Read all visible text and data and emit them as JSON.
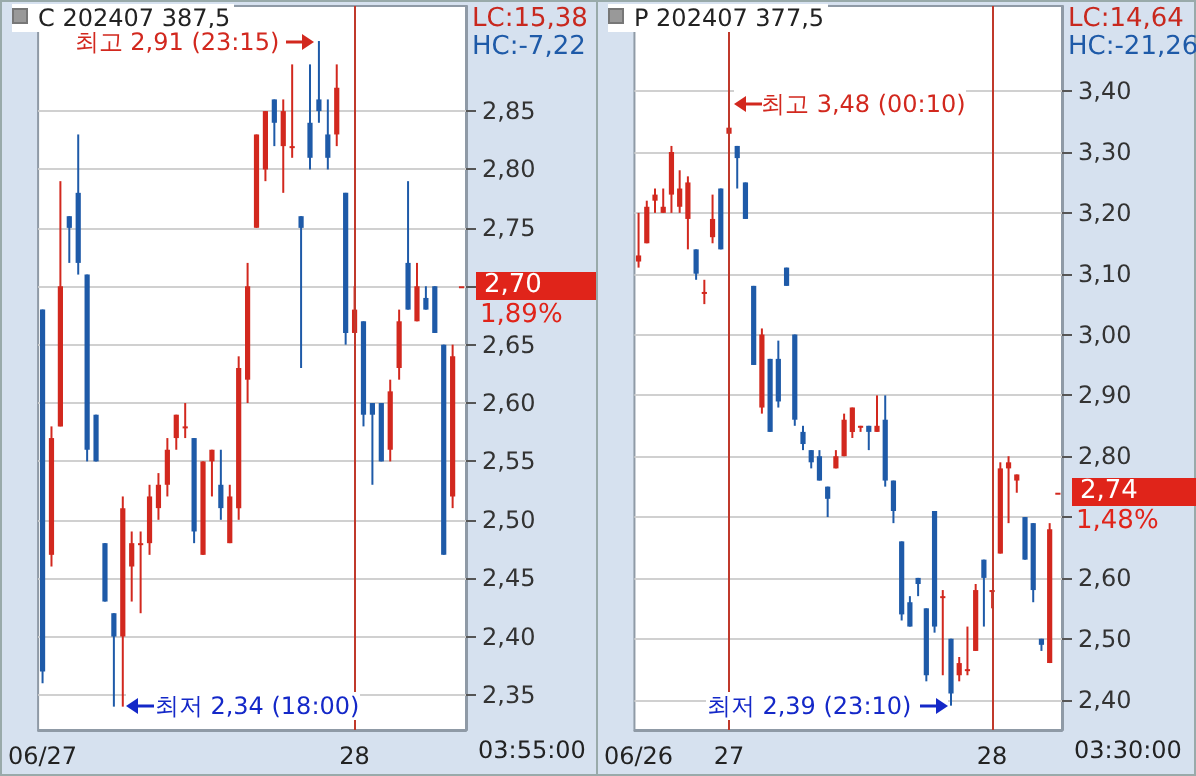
{
  "chart_data": [
    {
      "type": "candlestick",
      "title": "C 202407 387,5",
      "categories": [
        "06/27",
        null,
        null,
        null,
        null,
        null,
        null,
        null,
        null,
        null,
        null,
        null,
        null,
        null,
        null,
        null,
        null,
        null,
        null,
        null,
        null,
        null,
        null,
        null,
        null,
        null,
        null,
        null,
        null,
        null,
        null,
        null,
        null,
        null,
        null,
        "28",
        null,
        null,
        null,
        null,
        null,
        null,
        null,
        null,
        null,
        null,
        null,
        null
      ],
      "ohlc": [
        [
          2.68,
          2.68,
          2.36,
          2.37
        ],
        [
          2.47,
          2.58,
          2.46,
          2.57
        ],
        [
          2.58,
          2.79,
          2.58,
          2.7
        ],
        [
          2.76,
          2.76,
          2.72,
          2.75
        ],
        [
          2.78,
          2.83,
          2.71,
          2.72
        ],
        [
          2.71,
          2.71,
          2.55,
          2.56
        ],
        [
          2.59,
          2.59,
          2.55,
          2.55
        ],
        [
          2.48,
          2.48,
          2.43,
          2.43
        ],
        [
          2.42,
          2.42,
          2.34,
          2.4
        ],
        [
          2.4,
          2.52,
          2.34,
          2.51
        ],
        [
          2.46,
          2.49,
          2.43,
          2.48
        ],
        [
          2.48,
          2.49,
          2.42,
          2.48
        ],
        [
          2.48,
          2.53,
          2.47,
          2.52
        ],
        [
          2.51,
          2.54,
          2.5,
          2.53
        ],
        [
          2.53,
          2.57,
          2.52,
          2.56
        ],
        [
          2.57,
          2.59,
          2.56,
          2.59
        ],
        [
          2.58,
          2.6,
          2.57,
          2.58
        ],
        [
          2.57,
          2.57,
          2.48,
          2.49
        ],
        [
          2.47,
          2.55,
          2.47,
          2.55
        ],
        [
          2.55,
          2.56,
          2.52,
          2.56
        ],
        [
          2.53,
          2.56,
          2.5,
          2.51
        ],
        [
          2.48,
          2.53,
          2.48,
          2.52
        ],
        [
          2.51,
          2.64,
          2.5,
          2.63
        ],
        [
          2.62,
          2.72,
          2.6,
          2.7
        ],
        [
          2.75,
          2.83,
          2.75,
          2.83
        ],
        [
          2.8,
          2.85,
          2.79,
          2.85
        ],
        [
          2.86,
          2.86,
          2.82,
          2.84
        ],
        [
          2.82,
          2.86,
          2.78,
          2.85
        ],
        [
          2.82,
          2.89,
          2.81,
          2.82
        ],
        [
          2.76,
          2.76,
          2.63,
          2.75
        ],
        [
          2.84,
          2.89,
          2.8,
          2.81
        ],
        [
          2.86,
          2.91,
          2.84,
          2.85
        ],
        [
          2.83,
          2.86,
          2.8,
          2.81
        ],
        [
          2.83,
          2.89,
          2.82,
          2.87
        ],
        [
          2.78,
          2.78,
          2.65,
          2.66
        ],
        [
          2.66,
          2.7,
          2.66,
          2.68
        ],
        [
          2.67,
          2.67,
          2.58,
          2.59
        ],
        [
          2.6,
          2.6,
          2.53,
          2.59
        ],
        [
          2.6,
          2.6,
          2.55,
          2.55
        ],
        [
          2.56,
          2.62,
          2.55,
          2.61
        ],
        [
          2.63,
          2.68,
          2.62,
          2.67
        ],
        [
          2.72,
          2.79,
          2.68,
          2.68
        ],
        [
          2.67,
          2.72,
          2.67,
          2.7
        ],
        [
          2.69,
          2.7,
          2.68,
          2.68
        ],
        [
          2.7,
          2.7,
          2.66,
          2.66
        ],
        [
          2.65,
          2.65,
          2.47,
          2.47
        ],
        [
          2.52,
          2.65,
          2.51,
          2.64
        ],
        [
          2.7,
          2.7,
          2.7,
          2.7
        ]
      ],
      "colors": [
        "#1e5aa8",
        "#d2281e",
        "#d2281e",
        "#1e5aa8",
        "#1e5aa8",
        "#1e5aa8",
        "#1e5aa8",
        "#1e5aa8",
        "#1e5aa8",
        "#d2281e",
        "#d2281e",
        "#d2281e",
        "#d2281e",
        "#d2281e",
        "#d2281e",
        "#d2281e",
        "#d2281e",
        "#1e5aa8",
        "#d2281e",
        "#d2281e",
        "#1e5aa8",
        "#d2281e",
        "#d2281e",
        "#d2281e",
        "#d2281e",
        "#d2281e",
        "#1e5aa8",
        "#d2281e",
        "#d2281e",
        "#1e5aa8",
        "#1e5aa8",
        "#1e5aa8",
        "#1e5aa8",
        "#d2281e",
        "#1e5aa8",
        "#d2281e",
        "#1e5aa8",
        "#1e5aa8",
        "#1e5aa8",
        "#d2281e",
        "#d2281e",
        "#1e5aa8",
        "#d2281e",
        "#1e5aa8",
        "#1e5aa8",
        "#1e5aa8",
        "#d2281e",
        "#d2281e"
      ],
      "ylim": [
        2.32,
        2.94
      ],
      "yticks": [
        {
          "value": 2.35,
          "label": "2,35"
        },
        {
          "value": 2.4,
          "label": "2,40"
        },
        {
          "value": 2.45,
          "label": "2,45"
        },
        {
          "value": 2.5,
          "label": "2,50"
        },
        {
          "value": 2.55,
          "label": "2,55"
        },
        {
          "value": 2.6,
          "label": "2,60"
        },
        {
          "value": 2.65,
          "label": "2,65"
        },
        {
          "value": 2.7,
          "label": null
        },
        {
          "value": 2.75,
          "label": "2,75"
        },
        {
          "value": 2.8,
          "label": "2,80"
        },
        {
          "value": 2.85,
          "label": "2,85"
        }
      ],
      "grid": "y",
      "ref_lines": [
        {
          "axis": "x",
          "value": "28",
          "color": "#c0392b"
        }
      ],
      "annotations": [
        "LC:15,38",
        "HC:-7,22",
        "2,70",
        "1,89%",
        "03:55:00",
        "최고 2,91 (23:15)",
        "최저 2,34 (18:00)"
      ]
    },
    {
      "type": "candlestick",
      "title": "P 202407 377,5",
      "categories": [
        "06/26",
        null,
        null,
        null,
        null,
        null,
        null,
        null,
        null,
        null,
        null,
        "27",
        null,
        null,
        null,
        null,
        null,
        null,
        null,
        null,
        null,
        null,
        null,
        null,
        null,
        null,
        null,
        null,
        null,
        null,
        null,
        null,
        null,
        null,
        null,
        null,
        null,
        null,
        null,
        null,
        null,
        null,
        null,
        "28",
        null,
        null,
        null,
        null,
        null,
        null,
        null,
        null
      ],
      "ohlc": [
        [
          3.12,
          3.2,
          3.11,
          3.13
        ],
        [
          3.15,
          3.22,
          3.15,
          3.21
        ],
        [
          3.22,
          3.24,
          3.2,
          3.23
        ],
        [
          3.2,
          3.24,
          3.2,
          3.21
        ],
        [
          3.23,
          3.31,
          3.2,
          3.3
        ],
        [
          3.21,
          3.27,
          3.2,
          3.24
        ],
        [
          3.19,
          3.26,
          3.14,
          3.25
        ],
        [
          3.14,
          3.14,
          3.09,
          3.1
        ],
        [
          3.07,
          3.09,
          3.05,
          3.07
        ],
        [
          3.16,
          3.23,
          3.15,
          3.19
        ],
        [
          3.24,
          3.24,
          3.14,
          3.14
        ],
        [
          3.33,
          3.38,
          3.32,
          3.34
        ],
        [
          3.31,
          3.31,
          3.24,
          3.29
        ],
        [
          3.25,
          3.25,
          3.19,
          3.19
        ],
        [
          3.08,
          3.08,
          2.95,
          2.95
        ],
        [
          2.88,
          3.01,
          2.87,
          3.0
        ],
        [
          2.96,
          2.96,
          2.84,
          2.84
        ],
        [
          2.96,
          2.99,
          2.88,
          2.89
        ],
        [
          3.11,
          3.11,
          3.08,
          3.08
        ],
        [
          3.0,
          3.0,
          2.85,
          2.86
        ],
        [
          2.84,
          2.85,
          2.81,
          2.82
        ],
        [
          2.81,
          2.81,
          2.78,
          2.79
        ],
        [
          2.8,
          2.81,
          2.76,
          2.76
        ],
        [
          2.75,
          2.75,
          2.7,
          2.73
        ],
        [
          2.78,
          2.81,
          2.78,
          2.8
        ],
        [
          2.8,
          2.87,
          2.8,
          2.86
        ],
        [
          2.84,
          2.88,
          2.83,
          2.88
        ],
        [
          2.85,
          2.85,
          2.84,
          2.85
        ],
        [
          2.85,
          2.85,
          2.81,
          2.84
        ],
        [
          2.84,
          2.9,
          2.84,
          2.85
        ],
        [
          2.86,
          2.9,
          2.75,
          2.76
        ],
        [
          2.76,
          2.76,
          2.69,
          2.71
        ],
        [
          2.66,
          2.66,
          2.53,
          2.54
        ],
        [
          2.56,
          2.57,
          2.52,
          2.52
        ],
        [
          2.6,
          2.6,
          2.57,
          2.59
        ],
        [
          2.55,
          2.55,
          2.43,
          2.44
        ],
        [
          2.71,
          2.71,
          2.51,
          2.52
        ],
        [
          2.57,
          2.58,
          2.44,
          2.57
        ],
        [
          2.5,
          2.5,
          2.39,
          2.41
        ],
        [
          2.44,
          2.47,
          2.43,
          2.46
        ],
        [
          2.45,
          2.52,
          2.44,
          2.45
        ],
        [
          2.48,
          2.59,
          2.48,
          2.58
        ],
        [
          2.63,
          2.63,
          2.52,
          2.6
        ],
        [
          2.58,
          2.58,
          2.55,
          2.58
        ],
        [
          2.64,
          2.79,
          2.64,
          2.78
        ],
        [
          2.78,
          2.8,
          2.69,
          2.79
        ],
        [
          2.76,
          2.77,
          2.74,
          2.77
        ],
        [
          2.7,
          2.7,
          2.63,
          2.63
        ],
        [
          2.69,
          2.69,
          2.56,
          2.58
        ],
        [
          2.5,
          2.5,
          2.48,
          2.49
        ],
        [
          2.46,
          2.69,
          2.46,
          2.68
        ],
        [
          2.74,
          2.74,
          2.74,
          2.74
        ]
      ],
      "colors": [
        "#d2281e",
        "#d2281e",
        "#d2281e",
        "#d2281e",
        "#d2281e",
        "#d2281e",
        "#d2281e",
        "#1e5aa8",
        "#d2281e",
        "#d2281e",
        "#1e5aa8",
        "#d2281e",
        "#1e5aa8",
        "#1e5aa8",
        "#1e5aa8",
        "#d2281e",
        "#1e5aa8",
        "#1e5aa8",
        "#1e5aa8",
        "#1e5aa8",
        "#1e5aa8",
        "#1e5aa8",
        "#1e5aa8",
        "#1e5aa8",
        "#d2281e",
        "#d2281e",
        "#d2281e",
        "#d2281e",
        "#1e5aa8",
        "#d2281e",
        "#1e5aa8",
        "#1e5aa8",
        "#1e5aa8",
        "#1e5aa8",
        "#1e5aa8",
        "#1e5aa8",
        "#1e5aa8",
        "#d2281e",
        "#1e5aa8",
        "#d2281e",
        "#d2281e",
        "#d2281e",
        "#1e5aa8",
        "#d2281e",
        "#d2281e",
        "#d2281e",
        "#d2281e",
        "#1e5aa8",
        "#1e5aa8",
        "#1e5aa8",
        "#d2281e",
        "#d2281e"
      ],
      "ylim": [
        2.35,
        3.54
      ],
      "yticks": [
        {
          "value": 2.4,
          "label": "2,40"
        },
        {
          "value": 2.5,
          "label": "2,50"
        },
        {
          "value": 2.6,
          "label": "2,60"
        },
        {
          "value": 2.7,
          "label": null
        },
        {
          "value": 2.8,
          "label": "2,80"
        },
        {
          "value": 2.9,
          "label": "2,90"
        },
        {
          "value": 3.0,
          "label": "3,00"
        },
        {
          "value": 3.1,
          "label": "3,10"
        },
        {
          "value": 3.2,
          "label": "3,20"
        },
        {
          "value": 3.3,
          "label": "3,30"
        },
        {
          "value": 3.4,
          "label": "3,40"
        }
      ],
      "grid": "y",
      "ref_lines": [
        {
          "axis": "x",
          "value": "27",
          "color": "#c0392b"
        },
        {
          "axis": "x",
          "value": "28",
          "color": "#c0392b"
        }
      ],
      "annotations": [
        "LC:14,64",
        "HC:-21,26",
        "2,74",
        "1,48%",
        "03:30:00",
        "최고 3,48 (00:10)",
        "최저 2,39 (23:10)"
      ]
    }
  ]
}
